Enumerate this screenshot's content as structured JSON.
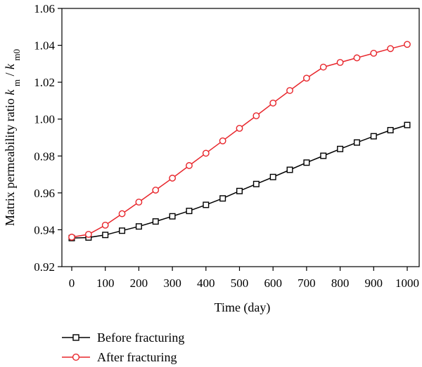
{
  "chart_data": {
    "type": "line",
    "xlabel": "Time (day)",
    "ylabel": {
      "prefix": "Matrix permeability ratio ",
      "num_var": "k",
      "num_sub": "m",
      "slash": "/",
      "den_var": "k",
      "den_sub": "m0"
    },
    "xlim": [
      0,
      1000
    ],
    "ylim": [
      0.92,
      1.06
    ],
    "xticks": [
      0,
      100,
      200,
      300,
      400,
      500,
      600,
      700,
      800,
      900,
      1000
    ],
    "yticks": [
      0.92,
      0.94,
      0.96,
      0.98,
      1.0,
      1.02,
      1.04,
      1.06
    ],
    "ytick_labels": [
      "0.92",
      "0.94",
      "0.96",
      "0.98",
      "1.00",
      "1.02",
      "1.04",
      "1.06"
    ],
    "grid": false,
    "legend_placement": "bottom-left, below plot",
    "x": [
      0,
      50,
      100,
      150,
      200,
      250,
      300,
      350,
      400,
      450,
      500,
      550,
      600,
      650,
      700,
      750,
      800,
      850,
      900,
      950,
      1000
    ],
    "series": [
      {
        "name": "Before fracturing",
        "color": "#000000",
        "marker": "square",
        "values": [
          0.9355,
          0.9358,
          0.9372,
          0.9395,
          0.9418,
          0.9445,
          0.9473,
          0.9502,
          0.9535,
          0.957,
          0.961,
          0.9648,
          0.9686,
          0.9725,
          0.9764,
          0.9801,
          0.9838,
          0.9873,
          0.9907,
          0.994,
          0.9968
        ]
      },
      {
        "name": "After fracturing",
        "color": "#e8262c",
        "marker": "circle",
        "values": [
          0.936,
          0.9375,
          0.9425,
          0.9487,
          0.955,
          0.9615,
          0.968,
          0.9748,
          0.9815,
          0.9882,
          0.995,
          1.0018,
          1.0087,
          1.0155,
          1.0222,
          1.0282,
          1.0307,
          1.0332,
          1.0357,
          1.0382,
          1.0405
        ]
      }
    ]
  }
}
